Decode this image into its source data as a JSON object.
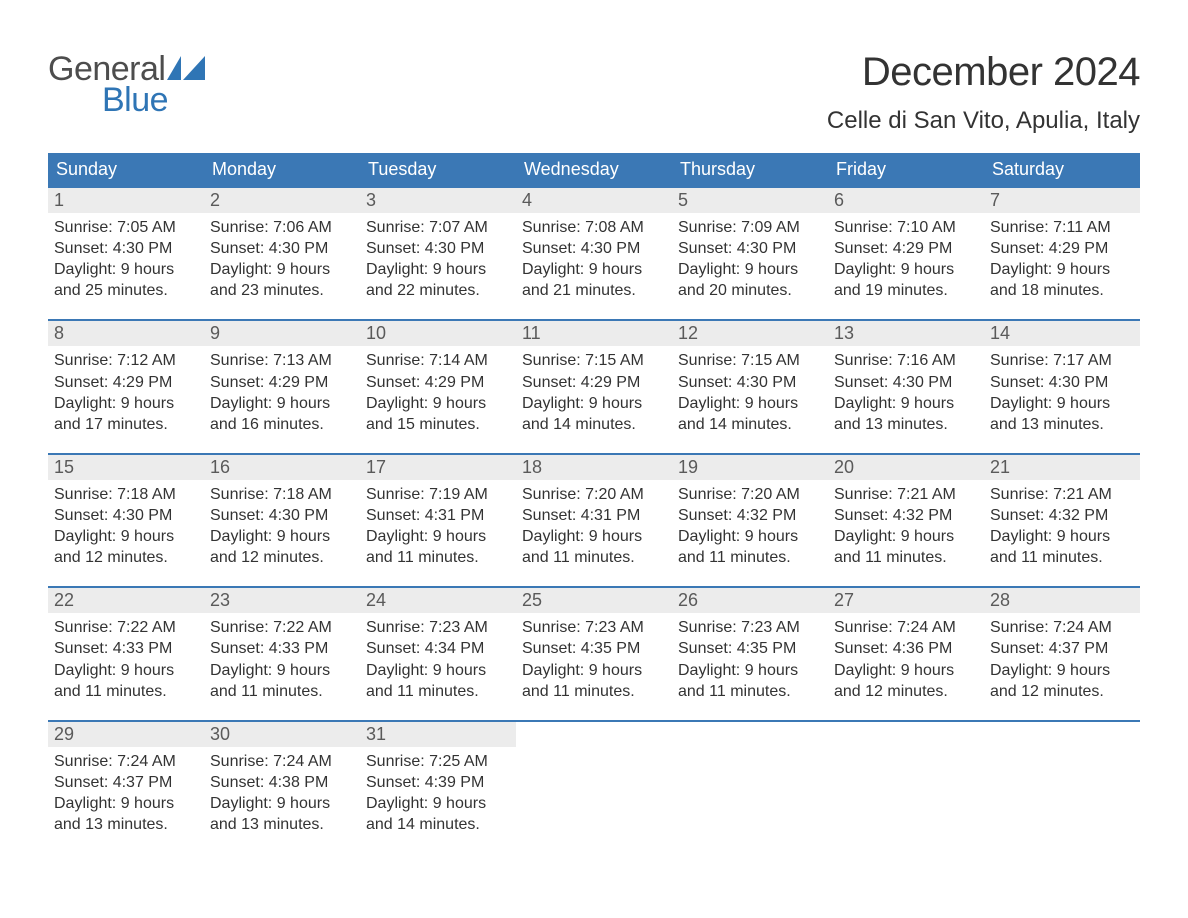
{
  "logo": {
    "text_general": "General",
    "text_blue": "Blue",
    "flag_color": "#2f75b5"
  },
  "header": {
    "month_title": "December 2024",
    "location": "Celle di San Vito, Apulia, Italy"
  },
  "calendar": {
    "type": "table",
    "background_color": "#ffffff",
    "header_bg": "#3b78b5",
    "header_text_color": "#ffffff",
    "week_border_color": "#3b78b5",
    "daynum_bg": "#ececec",
    "daynum_color": "#5a5a5a",
    "body_text_color": "#333333",
    "title_fontsize": 40,
    "location_fontsize": 24,
    "dow_fontsize": 18,
    "daynum_fontsize": 18,
    "body_fontsize": 16,
    "days_of_week": [
      "Sunday",
      "Monday",
      "Tuesday",
      "Wednesday",
      "Thursday",
      "Friday",
      "Saturday"
    ],
    "weeks": [
      [
        {
          "n": "1",
          "sunrise": "Sunrise: 7:05 AM",
          "sunset": "Sunset: 4:30 PM",
          "d1": "Daylight: 9 hours",
          "d2": "and 25 minutes."
        },
        {
          "n": "2",
          "sunrise": "Sunrise: 7:06 AM",
          "sunset": "Sunset: 4:30 PM",
          "d1": "Daylight: 9 hours",
          "d2": "and 23 minutes."
        },
        {
          "n": "3",
          "sunrise": "Sunrise: 7:07 AM",
          "sunset": "Sunset: 4:30 PM",
          "d1": "Daylight: 9 hours",
          "d2": "and 22 minutes."
        },
        {
          "n": "4",
          "sunrise": "Sunrise: 7:08 AM",
          "sunset": "Sunset: 4:30 PM",
          "d1": "Daylight: 9 hours",
          "d2": "and 21 minutes."
        },
        {
          "n": "5",
          "sunrise": "Sunrise: 7:09 AM",
          "sunset": "Sunset: 4:30 PM",
          "d1": "Daylight: 9 hours",
          "d2": "and 20 minutes."
        },
        {
          "n": "6",
          "sunrise": "Sunrise: 7:10 AM",
          "sunset": "Sunset: 4:29 PM",
          "d1": "Daylight: 9 hours",
          "d2": "and 19 minutes."
        },
        {
          "n": "7",
          "sunrise": "Sunrise: 7:11 AM",
          "sunset": "Sunset: 4:29 PM",
          "d1": "Daylight: 9 hours",
          "d2": "and 18 minutes."
        }
      ],
      [
        {
          "n": "8",
          "sunrise": "Sunrise: 7:12 AM",
          "sunset": "Sunset: 4:29 PM",
          "d1": "Daylight: 9 hours",
          "d2": "and 17 minutes."
        },
        {
          "n": "9",
          "sunrise": "Sunrise: 7:13 AM",
          "sunset": "Sunset: 4:29 PM",
          "d1": "Daylight: 9 hours",
          "d2": "and 16 minutes."
        },
        {
          "n": "10",
          "sunrise": "Sunrise: 7:14 AM",
          "sunset": "Sunset: 4:29 PM",
          "d1": "Daylight: 9 hours",
          "d2": "and 15 minutes."
        },
        {
          "n": "11",
          "sunrise": "Sunrise: 7:15 AM",
          "sunset": "Sunset: 4:29 PM",
          "d1": "Daylight: 9 hours",
          "d2": "and 14 minutes."
        },
        {
          "n": "12",
          "sunrise": "Sunrise: 7:15 AM",
          "sunset": "Sunset: 4:30 PM",
          "d1": "Daylight: 9 hours",
          "d2": "and 14 minutes."
        },
        {
          "n": "13",
          "sunrise": "Sunrise: 7:16 AM",
          "sunset": "Sunset: 4:30 PM",
          "d1": "Daylight: 9 hours",
          "d2": "and 13 minutes."
        },
        {
          "n": "14",
          "sunrise": "Sunrise: 7:17 AM",
          "sunset": "Sunset: 4:30 PM",
          "d1": "Daylight: 9 hours",
          "d2": "and 13 minutes."
        }
      ],
      [
        {
          "n": "15",
          "sunrise": "Sunrise: 7:18 AM",
          "sunset": "Sunset: 4:30 PM",
          "d1": "Daylight: 9 hours",
          "d2": "and 12 minutes."
        },
        {
          "n": "16",
          "sunrise": "Sunrise: 7:18 AM",
          "sunset": "Sunset: 4:30 PM",
          "d1": "Daylight: 9 hours",
          "d2": "and 12 minutes."
        },
        {
          "n": "17",
          "sunrise": "Sunrise: 7:19 AM",
          "sunset": "Sunset: 4:31 PM",
          "d1": "Daylight: 9 hours",
          "d2": "and 11 minutes."
        },
        {
          "n": "18",
          "sunrise": "Sunrise: 7:20 AM",
          "sunset": "Sunset: 4:31 PM",
          "d1": "Daylight: 9 hours",
          "d2": "and 11 minutes."
        },
        {
          "n": "19",
          "sunrise": "Sunrise: 7:20 AM",
          "sunset": "Sunset: 4:32 PM",
          "d1": "Daylight: 9 hours",
          "d2": "and 11 minutes."
        },
        {
          "n": "20",
          "sunrise": "Sunrise: 7:21 AM",
          "sunset": "Sunset: 4:32 PM",
          "d1": "Daylight: 9 hours",
          "d2": "and 11 minutes."
        },
        {
          "n": "21",
          "sunrise": "Sunrise: 7:21 AM",
          "sunset": "Sunset: 4:32 PM",
          "d1": "Daylight: 9 hours",
          "d2": "and 11 minutes."
        }
      ],
      [
        {
          "n": "22",
          "sunrise": "Sunrise: 7:22 AM",
          "sunset": "Sunset: 4:33 PM",
          "d1": "Daylight: 9 hours",
          "d2": "and 11 minutes."
        },
        {
          "n": "23",
          "sunrise": "Sunrise: 7:22 AM",
          "sunset": "Sunset: 4:33 PM",
          "d1": "Daylight: 9 hours",
          "d2": "and 11 minutes."
        },
        {
          "n": "24",
          "sunrise": "Sunrise: 7:23 AM",
          "sunset": "Sunset: 4:34 PM",
          "d1": "Daylight: 9 hours",
          "d2": "and 11 minutes."
        },
        {
          "n": "25",
          "sunrise": "Sunrise: 7:23 AM",
          "sunset": "Sunset: 4:35 PM",
          "d1": "Daylight: 9 hours",
          "d2": "and 11 minutes."
        },
        {
          "n": "26",
          "sunrise": "Sunrise: 7:23 AM",
          "sunset": "Sunset: 4:35 PM",
          "d1": "Daylight: 9 hours",
          "d2": "and 11 minutes."
        },
        {
          "n": "27",
          "sunrise": "Sunrise: 7:24 AM",
          "sunset": "Sunset: 4:36 PM",
          "d1": "Daylight: 9 hours",
          "d2": "and 12 minutes."
        },
        {
          "n": "28",
          "sunrise": "Sunrise: 7:24 AM",
          "sunset": "Sunset: 4:37 PM",
          "d1": "Daylight: 9 hours",
          "d2": "and 12 minutes."
        }
      ],
      [
        {
          "n": "29",
          "sunrise": "Sunrise: 7:24 AM",
          "sunset": "Sunset: 4:37 PM",
          "d1": "Daylight: 9 hours",
          "d2": "and 13 minutes."
        },
        {
          "n": "30",
          "sunrise": "Sunrise: 7:24 AM",
          "sunset": "Sunset: 4:38 PM",
          "d1": "Daylight: 9 hours",
          "d2": "and 13 minutes."
        },
        {
          "n": "31",
          "sunrise": "Sunrise: 7:25 AM",
          "sunset": "Sunset: 4:39 PM",
          "d1": "Daylight: 9 hours",
          "d2": "and 14 minutes."
        },
        null,
        null,
        null,
        null
      ]
    ]
  }
}
